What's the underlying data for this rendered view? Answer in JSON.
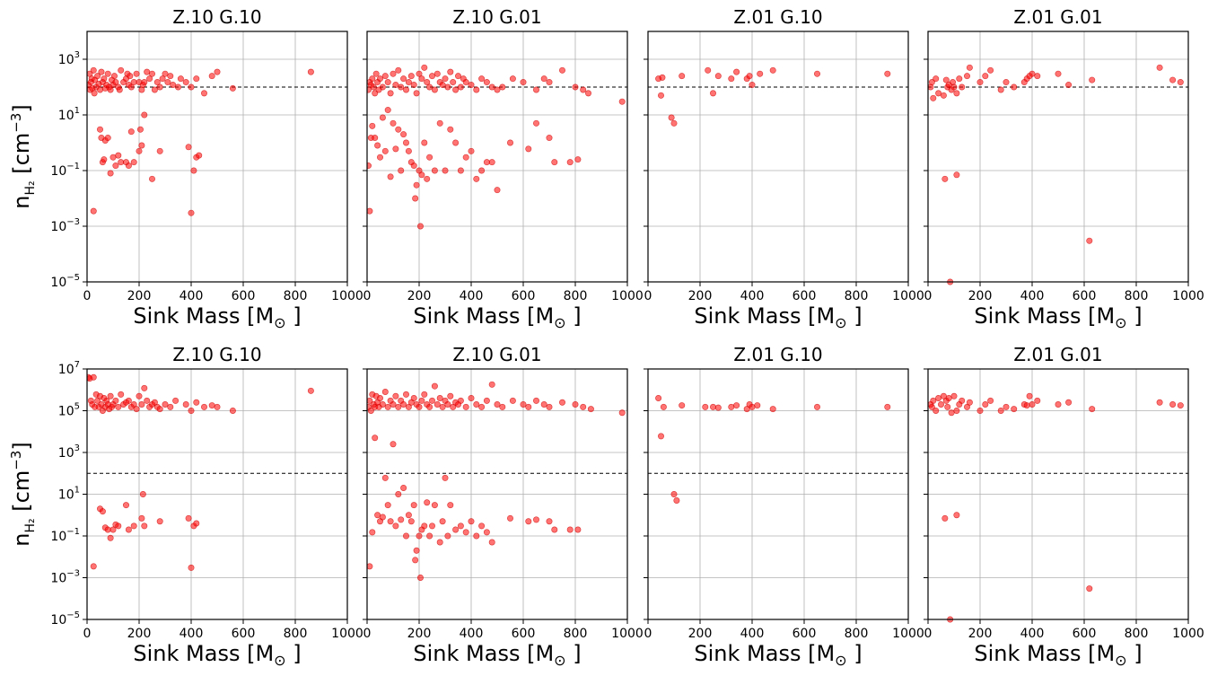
{
  "chart_data": [
    {
      "type": "scatter",
      "title": "Z.10 G.10",
      "xlabel": "Sink Mass [M⊙]",
      "ylabel": "n_H2 [cm^-3]",
      "xlim": [
        0,
        1000
      ],
      "ylim": [
        1e-05,
        10000.0
      ],
      "yscale": "log",
      "grid": true,
      "reference_line": 100,
      "x": [
        5,
        10,
        12,
        15,
        18,
        20,
        25,
        28,
        30,
        35,
        40,
        45,
        50,
        55,
        60,
        65,
        70,
        75,
        80,
        85,
        90,
        95,
        100,
        105,
        110,
        120,
        125,
        130,
        140,
        150,
        155,
        160,
        165,
        170,
        180,
        190,
        200,
        210,
        215,
        220,
        230,
        240,
        250,
        260,
        270,
        280,
        290,
        300,
        310,
        320,
        330,
        350,
        360,
        380,
        400,
        420,
        450,
        480,
        500,
        560,
        860,
        25,
        50,
        55,
        60,
        65,
        70,
        80,
        90,
        100,
        110,
        120,
        130,
        150,
        160,
        170,
        180,
        200,
        205,
        210,
        220,
        250,
        280,
        390,
        400,
        410,
        420,
        430
      ],
      "y": [
        120,
        300,
        80,
        150,
        200,
        90,
        400,
        60,
        180,
        100,
        250,
        130,
        80,
        350,
        150,
        200,
        90,
        120,
        300,
        100,
        80,
        180,
        120,
        250,
        150,
        100,
        80,
        400,
        150,
        200,
        300,
        120,
        250,
        100,
        150,
        300,
        150,
        80,
        120,
        150,
        350,
        200,
        300,
        80,
        150,
        100,
        200,
        300,
        150,
        250,
        120,
        100,
        200,
        150,
        100,
        200,
        60,
        250,
        350,
        90,
        350,
        0.0035,
        3,
        1.5,
        0.2,
        0.25,
        1.2,
        1.5,
        0.08,
        0.3,
        0.15,
        0.35,
        0.2,
        0.2,
        0.15,
        2.5,
        0.2,
        0.5,
        3,
        0.8,
        10,
        0.05,
        0.5,
        0.7,
        0.003,
        0.1,
        0.3,
        0.35
      ]
    },
    {
      "type": "scatter",
      "title": "Z.10 G.01",
      "xlabel": "Sink Mass [M⊙]",
      "ylabel": "",
      "xlim": [
        0,
        1000
      ],
      "ylim": [
        1e-05,
        10000.0
      ],
      "yscale": "log",
      "grid": true,
      "reference_line": 100,
      "x": [
        5,
        10,
        15,
        20,
        25,
        30,
        35,
        40,
        45,
        50,
        60,
        70,
        80,
        90,
        100,
        110,
        120,
        130,
        140,
        150,
        160,
        170,
        180,
        190,
        200,
        210,
        220,
        230,
        240,
        250,
        260,
        270,
        280,
        290,
        300,
        310,
        320,
        330,
        340,
        350,
        360,
        370,
        380,
        400,
        420,
        440,
        460,
        480,
        500,
        520,
        560,
        600,
        650,
        680,
        700,
        750,
        800,
        830,
        850,
        980,
        5,
        10,
        15,
        20,
        30,
        40,
        50,
        60,
        70,
        80,
        90,
        100,
        110,
        120,
        130,
        140,
        150,
        160,
        170,
        180,
        185,
        190,
        200,
        205,
        210,
        220,
        230,
        240,
        260,
        280,
        300,
        320,
        340,
        360,
        380,
        400,
        420,
        440,
        460,
        480,
        500,
        550,
        620,
        650,
        700,
        720,
        780,
        810
      ],
      "y": [
        80,
        150,
        120,
        200,
        100,
        60,
        300,
        150,
        80,
        200,
        100,
        250,
        150,
        60,
        300,
        120,
        400,
        100,
        200,
        80,
        150,
        250,
        120,
        60,
        300,
        200,
        500,
        150,
        100,
        250,
        80,
        300,
        150,
        120,
        200,
        100,
        350,
        150,
        80,
        250,
        100,
        200,
        150,
        120,
        80,
        200,
        150,
        100,
        80,
        100,
        200,
        150,
        80,
        200,
        150,
        400,
        100,
        80,
        60,
        30,
        0.15,
        0.0035,
        1.5,
        4,
        1.5,
        0.8,
        0.3,
        8,
        0.5,
        15,
        0.06,
        5,
        0.6,
        3,
        0.1,
        2,
        1,
        0.5,
        0.2,
        0.15,
        0.01,
        0.03,
        0.1,
        0.001,
        0.07,
        1,
        0.05,
        0.3,
        0.1,
        5,
        0.1,
        3,
        1,
        0.1,
        0.3,
        0.5,
        0.05,
        0.1,
        0.2,
        0.2,
        0.02,
        1,
        0.6,
        5,
        1.5,
        0.2,
        0.2,
        0.25
      ]
    },
    {
      "type": "scatter",
      "title": "Z.01 G.10",
      "xlabel": "Sink Mass [M⊙]",
      "ylabel": "",
      "xlim": [
        0,
        1000
      ],
      "ylim": [
        1e-05,
        10000.0
      ],
      "yscale": "log",
      "grid": true,
      "reference_line": 100,
      "x": [
        40,
        50,
        55,
        90,
        100,
        130,
        230,
        250,
        270,
        320,
        340,
        380,
        390,
        400,
        430,
        480,
        650,
        920
      ],
      "y": [
        200,
        50,
        220,
        8,
        5,
        250,
        400,
        60,
        250,
        200,
        350,
        200,
        250,
        120,
        300,
        400,
        300,
        300
      ]
    },
    {
      "type": "scatter",
      "title": "Z.01 G.01",
      "xlabel": "Sink Mass [M⊙]",
      "ylabel": "",
      "xlim": [
        0,
        1000
      ],
      "ylim": [
        1e-05,
        10000.0
      ],
      "yscale": "log",
      "grid": true,
      "reference_line": 100,
      "x": [
        10,
        15,
        20,
        30,
        40,
        60,
        70,
        75,
        80,
        90,
        95,
        100,
        110,
        120,
        130,
        150,
        160,
        200,
        220,
        240,
        280,
        300,
        330,
        370,
        380,
        390,
        400,
        420,
        500,
        540,
        630,
        890,
        940,
        970,
        65,
        85,
        110,
        620
      ],
      "y": [
        100,
        150,
        40,
        200,
        60,
        50,
        180,
        100,
        120,
        80,
        150,
        100,
        60,
        200,
        100,
        250,
        500,
        150,
        250,
        400,
        80,
        150,
        100,
        150,
        200,
        250,
        300,
        250,
        300,
        120,
        180,
        500,
        180,
        150,
        0.05,
        1e-05,
        0.07,
        0.0003
      ]
    },
    {
      "type": "scatter",
      "title": "Z.10 G.10",
      "xlabel": "Sink Mass [M⊙]",
      "ylabel": "n_H2 [cm^-3]",
      "xlim": [
        0,
        1000
      ],
      "ylim": [
        1e-05,
        10000000.0
      ],
      "yscale": "log",
      "grid": true,
      "reference_line": 100,
      "x": [
        5,
        10,
        15,
        20,
        25,
        30,
        35,
        40,
        45,
        50,
        55,
        60,
        65,
        70,
        75,
        80,
        85,
        90,
        95,
        100,
        110,
        120,
        130,
        140,
        150,
        160,
        170,
        180,
        190,
        200,
        210,
        220,
        230,
        240,
        250,
        260,
        270,
        280,
        300,
        320,
        340,
        380,
        400,
        420,
        450,
        480,
        500,
        560,
        860,
        25,
        50,
        60,
        70,
        80,
        90,
        100,
        110,
        120,
        150,
        160,
        180,
        210,
        215,
        220,
        280,
        390,
        400,
        410,
        420
      ],
      "y": [
        4000000,
        3500000,
        300000,
        200000,
        4000000,
        150000,
        600000,
        300000,
        150000,
        500000,
        200000,
        100000,
        400000,
        150000,
        300000,
        200000,
        120000,
        500000,
        150000,
        200000,
        300000,
        150000,
        600000,
        200000,
        250000,
        300000,
        150000,
        200000,
        120000,
        500000,
        200000,
        1200000,
        300000,
        150000,
        200000,
        250000,
        150000,
        120000,
        200000,
        150000,
        300000,
        200000,
        100000,
        250000,
        150000,
        180000,
        150000,
        100000,
        900000,
        0.0035,
        2,
        1.5,
        0.25,
        0.2,
        0.08,
        0.2,
        0.35,
        0.3,
        3,
        0.2,
        0.3,
        0.7,
        10,
        0.3,
        0.5,
        0.7,
        0.003,
        0.3,
        0.4
      ]
    },
    {
      "type": "scatter",
      "title": "Z.10 G.01",
      "xlabel": "Sink Mass [M⊙]",
      "ylabel": "",
      "xlim": [
        0,
        1000
      ],
      "ylim": [
        1e-05,
        10000000.0
      ],
      "yscale": "log",
      "grid": true,
      "reference_line": 100,
      "x": [
        5,
        10,
        15,
        20,
        25,
        30,
        35,
        40,
        45,
        50,
        60,
        70,
        80,
        90,
        100,
        110,
        120,
        130,
        140,
        150,
        160,
        170,
        180,
        190,
        200,
        210,
        220,
        230,
        240,
        250,
        260,
        270,
        280,
        290,
        300,
        310,
        320,
        330,
        340,
        350,
        360,
        380,
        400,
        420,
        440,
        460,
        480,
        500,
        520,
        560,
        600,
        620,
        650,
        680,
        700,
        750,
        800,
        830,
        860,
        980,
        10,
        20,
        30,
        40,
        50,
        60,
        70,
        80,
        90,
        100,
        110,
        120,
        130,
        140,
        150,
        160,
        170,
        180,
        185,
        190,
        200,
        205,
        210,
        220,
        230,
        240,
        250,
        260,
        280,
        290,
        300,
        310,
        320,
        340,
        360,
        380,
        400,
        420,
        440,
        460,
        480,
        550,
        620,
        650,
        700,
        720,
        780,
        810
      ],
      "y": [
        150000,
        300000,
        100000,
        600000,
        200000,
        150000,
        500000,
        250000,
        150000,
        400000,
        200000,
        800000,
        150000,
        300000,
        200000,
        500000,
        150000,
        300000,
        200000,
        600000,
        150000,
        250000,
        400000,
        200000,
        150000,
        300000,
        600000,
        200000,
        150000,
        300000,
        1500000,
        200000,
        400000,
        150000,
        300000,
        200000,
        500000,
        150000,
        250000,
        200000,
        300000,
        150000,
        400000,
        200000,
        150000,
        300000,
        1800000,
        200000,
        150000,
        300000,
        200000,
        150000,
        300000,
        200000,
        150000,
        250000,
        200000,
        150000,
        120000,
        80000,
        0.0035,
        0.15,
        5000,
        1,
        0.5,
        0.8,
        60,
        3,
        0.5,
        2500,
        0.3,
        10,
        0.6,
        20,
        0.1,
        1,
        0.5,
        3,
        0.007,
        0.02,
        0.1,
        0.001,
        0.2,
        0.3,
        4,
        0.1,
        0.3,
        3,
        0.05,
        0.5,
        60,
        0.1,
        3,
        0.2,
        0.3,
        0.15,
        0.5,
        0.1,
        0.3,
        0.15,
        0.05,
        0.7,
        0.5,
        0.6,
        0.5,
        0.2,
        0.2,
        0.2
      ]
    },
    {
      "type": "scatter",
      "title": "Z.01 G.10",
      "xlabel": "Sink Mass [M⊙]",
      "ylabel": "",
      "xlim": [
        0,
        1000
      ],
      "ylim": [
        1e-05,
        10000000.0
      ],
      "yscale": "log",
      "grid": true,
      "reference_line": 100,
      "x": [
        40,
        50,
        60,
        130,
        220,
        250,
        270,
        320,
        340,
        380,
        390,
        400,
        420,
        480,
        650,
        920,
        100,
        110
      ],
      "y": [
        400000,
        6000,
        150000,
        180000,
        150000,
        150000,
        140000,
        150000,
        180000,
        120000,
        200000,
        150000,
        180000,
        120000,
        150000,
        150000,
        10,
        5
      ]
    },
    {
      "type": "scatter",
      "title": "Z.01 G.01",
      "xlabel": "Sink Mass [M⊙]",
      "ylabel": "",
      "xlim": [
        0,
        1000
      ],
      "ylim": [
        1e-05,
        10000000.0
      ],
      "yscale": "log",
      "grid": true,
      "reference_line": 100,
      "x": [
        10,
        15,
        20,
        30,
        40,
        50,
        60,
        70,
        75,
        80,
        90,
        100,
        110,
        120,
        130,
        150,
        160,
        200,
        220,
        240,
        280,
        300,
        330,
        370,
        380,
        390,
        400,
        420,
        500,
        540,
        630,
        890,
        940,
        970,
        65,
        85,
        110,
        620
      ],
      "y": [
        200000,
        150000,
        300000,
        100000,
        400000,
        200000,
        500000,
        300000,
        150000,
        400000,
        80000,
        500000,
        100000,
        200000,
        300000,
        150000,
        250000,
        100000,
        200000,
        300000,
        100000,
        150000,
        120000,
        200000,
        180000,
        500000,
        200000,
        300000,
        200000,
        250000,
        120000,
        250000,
        200000,
        180000,
        0.7,
        1e-05,
        1,
        0.0003
      ]
    }
  ],
  "axis": {
    "tick_labels_x": [
      "0",
      "200",
      "400",
      "600",
      "800",
      "1000"
    ],
    "tick_labels_y_top": [
      "10^-5",
      "10^-3",
      "10^-1",
      "10^1",
      "10^3"
    ],
    "tick_labels_y_bottom": [
      "10^-5",
      "10^-3",
      "10^-1",
      "10^1",
      "10^3",
      "10^5",
      "10^7"
    ]
  },
  "colors": {
    "points": "#ff0000",
    "points_edge": "#cc0000",
    "grid": "#b0b0b0",
    "reference_line": "#000000"
  }
}
